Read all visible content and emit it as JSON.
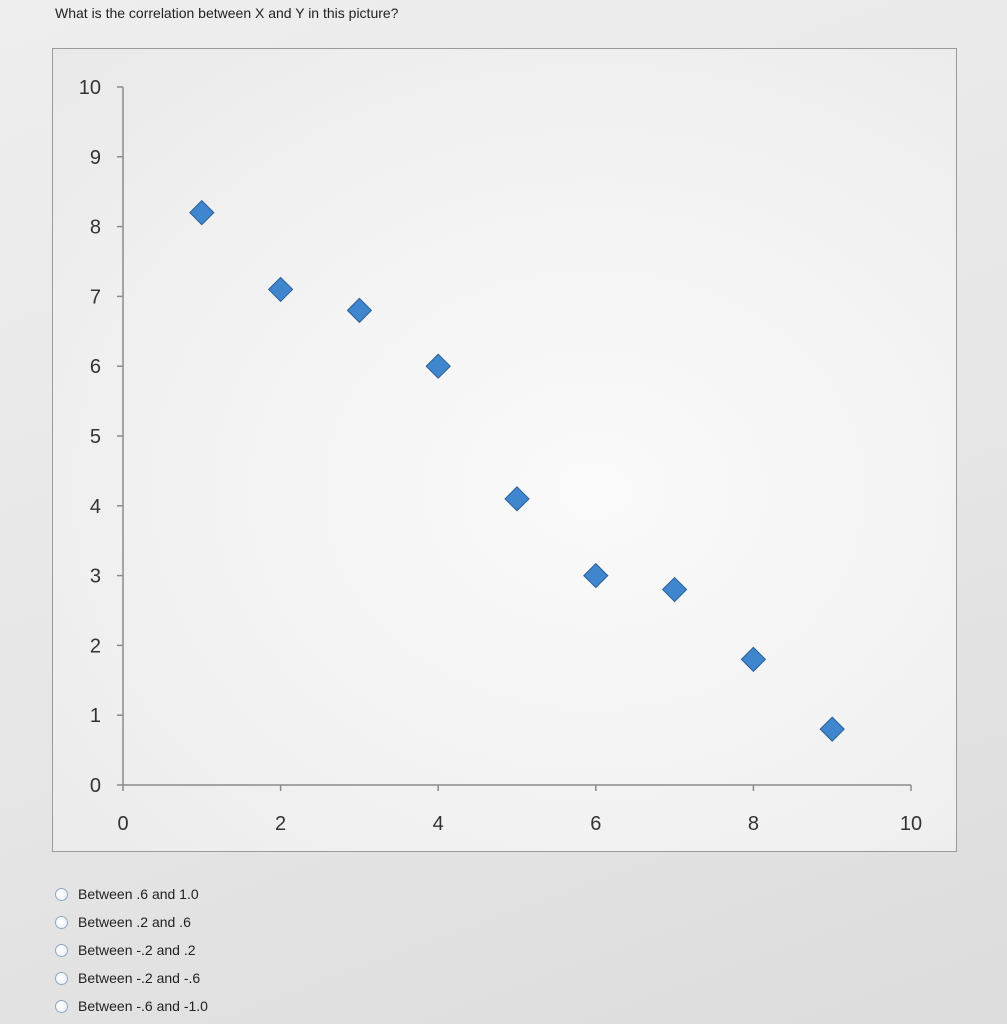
{
  "question": "What is the correlation between X and Y in this picture?",
  "options": [
    {
      "label": "Between .6 and 1.0"
    },
    {
      "label": "Between .2 and .6"
    },
    {
      "label": "Between -.2 and .2"
    },
    {
      "label": "Between -.2 and -.6"
    },
    {
      "label": "Between -.6 and -1.0"
    }
  ],
  "colors": {
    "marker": "#3f86cf",
    "marker_stroke": "#2b5f96"
  },
  "chart_data": {
    "type": "scatter",
    "title": "",
    "xlabel": "",
    "ylabel": "",
    "xlim": [
      0,
      10
    ],
    "ylim": [
      0,
      10
    ],
    "xticks": [
      0,
      2,
      4,
      6,
      8,
      10
    ],
    "yticks": [
      0,
      1,
      2,
      3,
      4,
      5,
      6,
      7,
      8,
      9,
      10
    ],
    "grid": false,
    "marker": "diamond",
    "points": [
      {
        "x": 1,
        "y": 8.2
      },
      {
        "x": 2,
        "y": 7.1
      },
      {
        "x": 3,
        "y": 6.8
      },
      {
        "x": 4,
        "y": 6.0
      },
      {
        "x": 5,
        "y": 4.1
      },
      {
        "x": 6,
        "y": 3.0
      },
      {
        "x": 7,
        "y": 2.8
      },
      {
        "x": 8,
        "y": 1.8
      },
      {
        "x": 9,
        "y": 0.8
      }
    ]
  }
}
